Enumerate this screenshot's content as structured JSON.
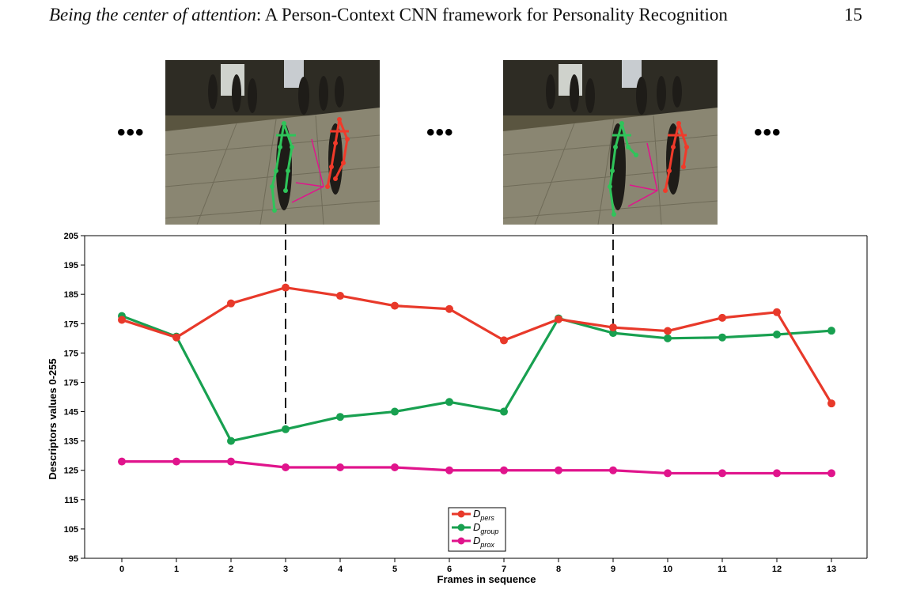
{
  "header": {
    "title_emphasis": "Being the center of attention",
    "title_rest": ": A Person-Context CNN framework for Personality Recognition",
    "page_number": "15"
  },
  "figure": {
    "ellipsis": "•••",
    "frames": [
      {
        "frame_index": 3,
        "skeletons": [
          "green",
          "red"
        ]
      },
      {
        "frame_index": 9,
        "skeletons": [
          "green",
          "red"
        ]
      }
    ]
  },
  "chart_data": {
    "type": "line",
    "xlabel": "Frames in sequence",
    "ylabel": "Descriptors values 0-255",
    "x": [
      0,
      1,
      2,
      3,
      4,
      5,
      6,
      7,
      8,
      9,
      10,
      11,
      12,
      13
    ],
    "ytick_labels": [
      "95",
      "105",
      "115",
      "125",
      "135",
      "145",
      "175",
      "175",
      "175",
      "185",
      "195",
      "205"
    ],
    "ylim": [
      95,
      205
    ],
    "grid": false,
    "legend_position": "bottom-center",
    "highlighted_frames": [
      3,
      9
    ],
    "series": [
      {
        "name": "D_pers",
        "label_main": "D",
        "label_sub": "pers",
        "color": "#e8392a",
        "values": [
          176.3,
          170.3,
          181.9,
          187.3,
          184.5,
          181.1,
          180.0,
          169.3,
          176.5,
          173.7,
          172.5,
          177.0,
          178.9,
          147.8
        ]
      },
      {
        "name": "D_group",
        "label_main": "D",
        "label_sub": "group",
        "color": "#18a050",
        "values": [
          177.6,
          170.6,
          135.0,
          139.0,
          143.2,
          145.0,
          148.3,
          145.0,
          176.8,
          171.8,
          170.0,
          170.3,
          171.3,
          172.6
        ]
      },
      {
        "name": "D_prox",
        "label_main": "D",
        "label_sub": "prox",
        "color": "#e0148c",
        "values": [
          128.0,
          128.0,
          128.0,
          126.0,
          126.0,
          126.0,
          125.0,
          125.0,
          125.0,
          125.0,
          124.0,
          124.0,
          124.0,
          124.0
        ]
      }
    ]
  }
}
